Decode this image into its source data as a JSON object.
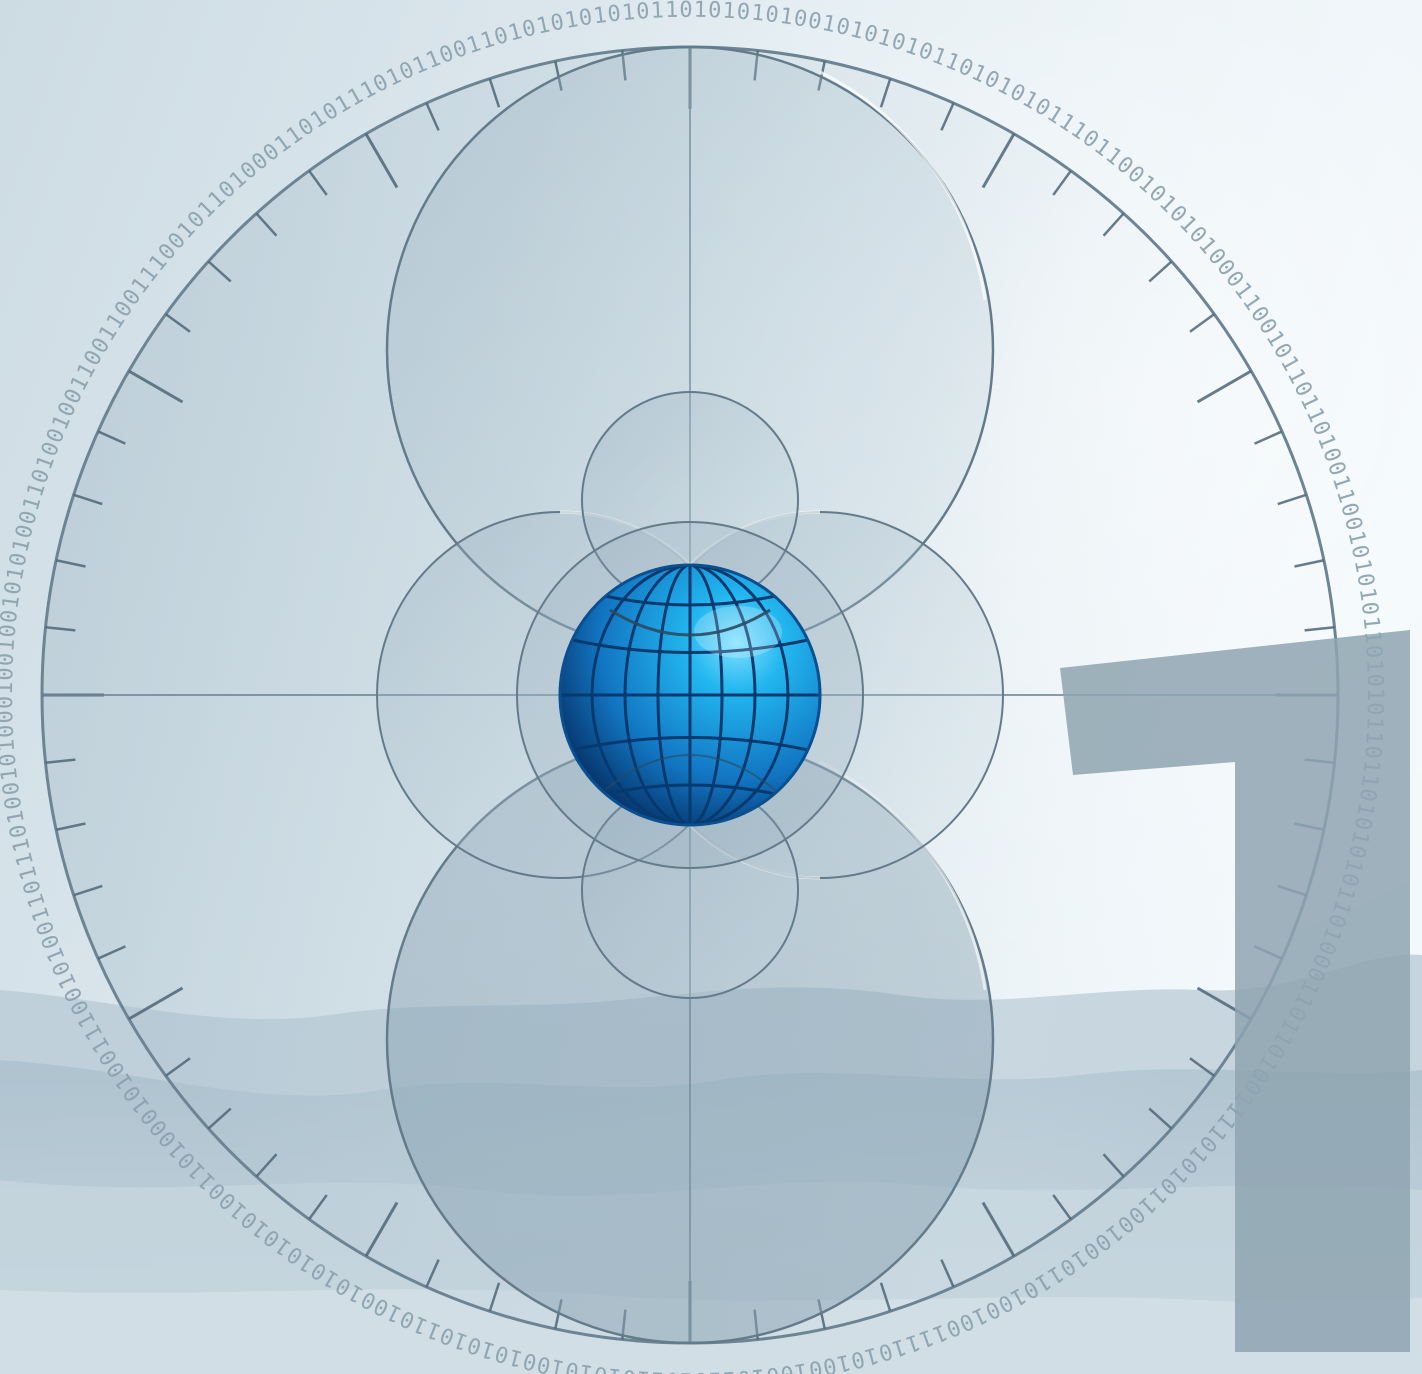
{
  "artwork": {
    "big_numeral": "1",
    "binary_ring_text": "1001001010100110100100110011001110010110100011010111010110011010101010101101010101001010101011010101011101100101010100011001011011010011001010101101010110110101010110100011011010011110101011001001011010010011110101001001011010110101010010101011010010101010101001101000101001110010100110111010010100001110010010010110101101001100101001011011101010101010100110010101001011001101011010110101001001010101100001101001100101",
    "colors": {
      "background_light": "#eef5f9",
      "background_mid": "#cfdde5",
      "mountain": "#9fb6c4",
      "dial_fill": "#8fa9b8",
      "dial_stroke": "#5d7585",
      "tick": "#4f6777",
      "binary_text": "#8aa0ad",
      "globe_light": "#35c8f5",
      "globe_mid": "#1a9ae0",
      "globe_dark": "#0a4f8f",
      "globe_grid": "#063a6e",
      "numeral": "#8ea4b0"
    }
  }
}
